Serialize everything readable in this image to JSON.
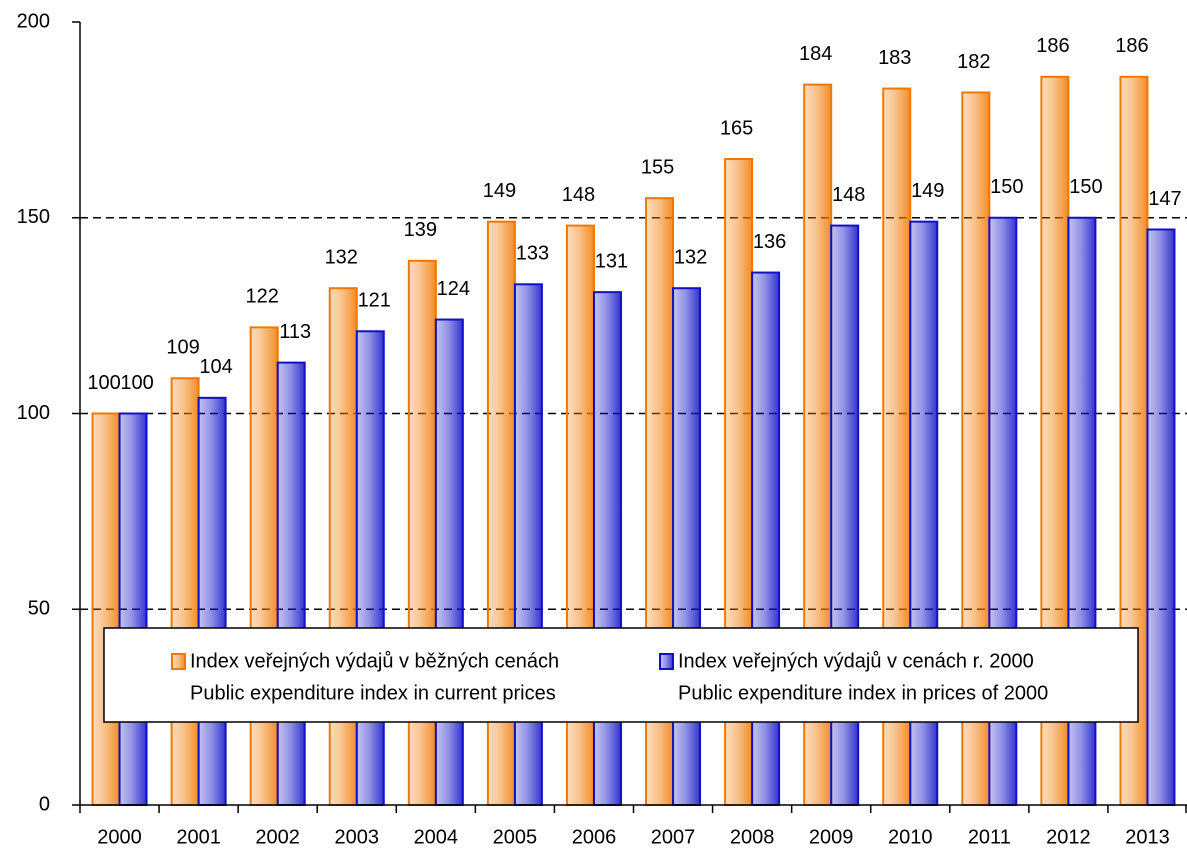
{
  "chart_data": {
    "type": "bar",
    "categories": [
      "2000",
      "2001",
      "2002",
      "2003",
      "2004",
      "2005",
      "2006",
      "2007",
      "2008",
      "2009",
      "2010",
      "2011",
      "2012",
      "2013"
    ],
    "series": [
      {
        "name": "Index veřejných výdajů v běžných cenách",
        "name_en": "Public expenditure index in current prices",
        "color": "#f07800",
        "values": [
          100,
          109,
          122,
          132,
          139,
          149,
          148,
          155,
          165,
          184,
          183,
          182,
          186,
          186
        ]
      },
      {
        "name": "Index veřejných výdajů v cenách r. 2000",
        "name_en": "Public expenditure index in prices of 2000",
        "color": "#1010c8",
        "values": [
          100,
          104,
          113,
          121,
          124,
          133,
          131,
          132,
          136,
          148,
          149,
          150,
          150,
          147
        ]
      }
    ],
    "ylim": [
      0,
      200
    ],
    "yticks": [
      0,
      50,
      100,
      150,
      200
    ],
    "grid": true,
    "legend": "bottom"
  }
}
